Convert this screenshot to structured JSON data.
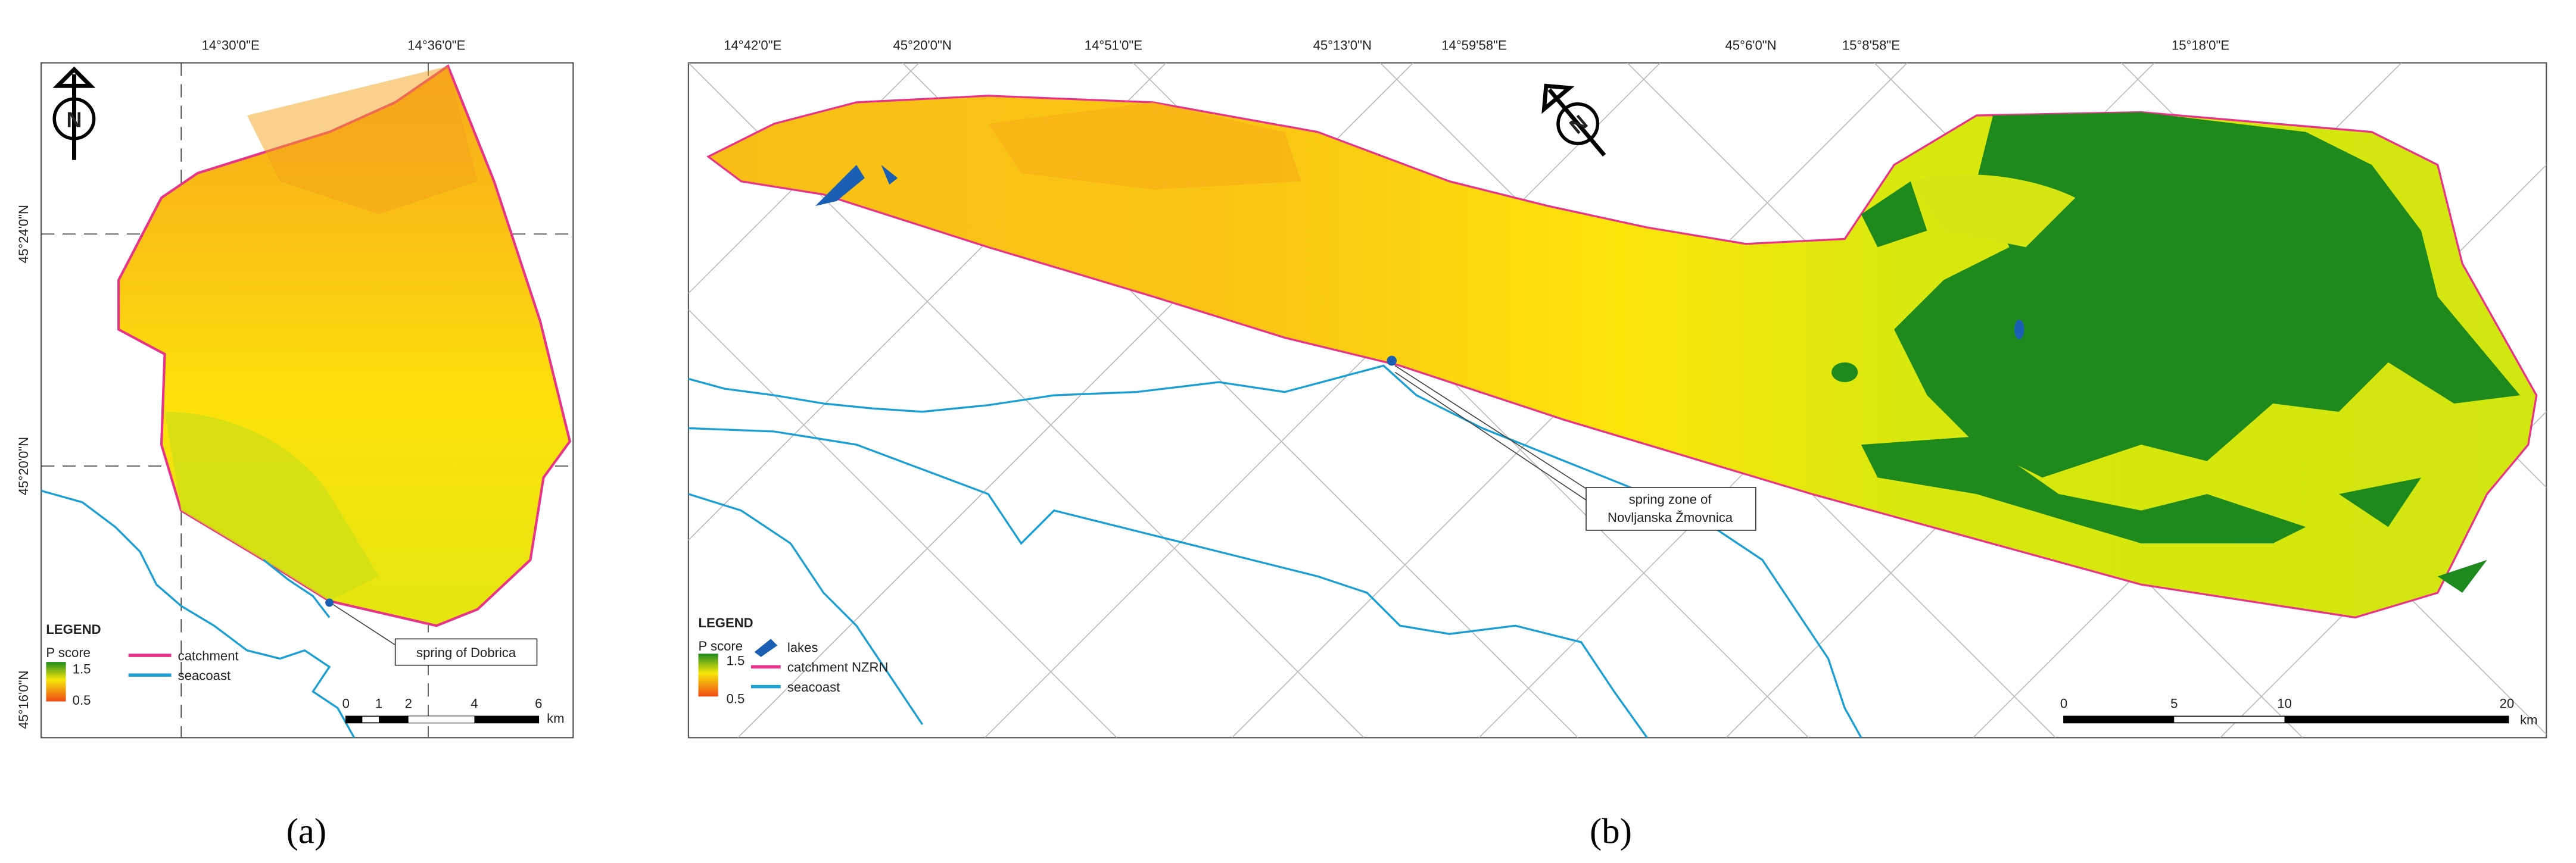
{
  "panel_a": {
    "caption": "(a)",
    "north": "N",
    "top_labels": [
      "14°30'0\"E",
      "14°36'0\"E"
    ],
    "left_labels": [
      "45°24'0\"N",
      "45°20'0\"N",
      "45°16'0\"N"
    ],
    "legend": {
      "title": "LEGEND",
      "p_score": "P score",
      "high": "1.5",
      "low": "0.5",
      "catchment": "catchment",
      "seacoast": "seacoast"
    },
    "scale_labels": [
      "0",
      "1",
      "2",
      "4",
      "6"
    ],
    "scale_unit": "km",
    "annotation": "spring of Dobrica"
  },
  "panel_b": {
    "caption": "(b)",
    "top_labels": [
      "14°42'0\"E",
      "45°20'0\"N",
      "14°51'0\"E",
      "45°13'0\"N",
      "14°59'58\"E",
      "45°6'0\"N",
      "15°8'58\"E",
      "15°18'0\"E"
    ],
    "legend": {
      "title": "LEGEND",
      "p_score": "P score",
      "high": "1.5",
      "low": "0.5",
      "lakes": "lakes",
      "catchment": "catchment NZRN",
      "seacoast": "seacoast"
    },
    "scale_labels": [
      "0",
      "5",
      "10",
      "20"
    ],
    "scale_unit": "km",
    "annotation": [
      "spring zone of",
      "Novljanska Žmovnica"
    ]
  }
}
